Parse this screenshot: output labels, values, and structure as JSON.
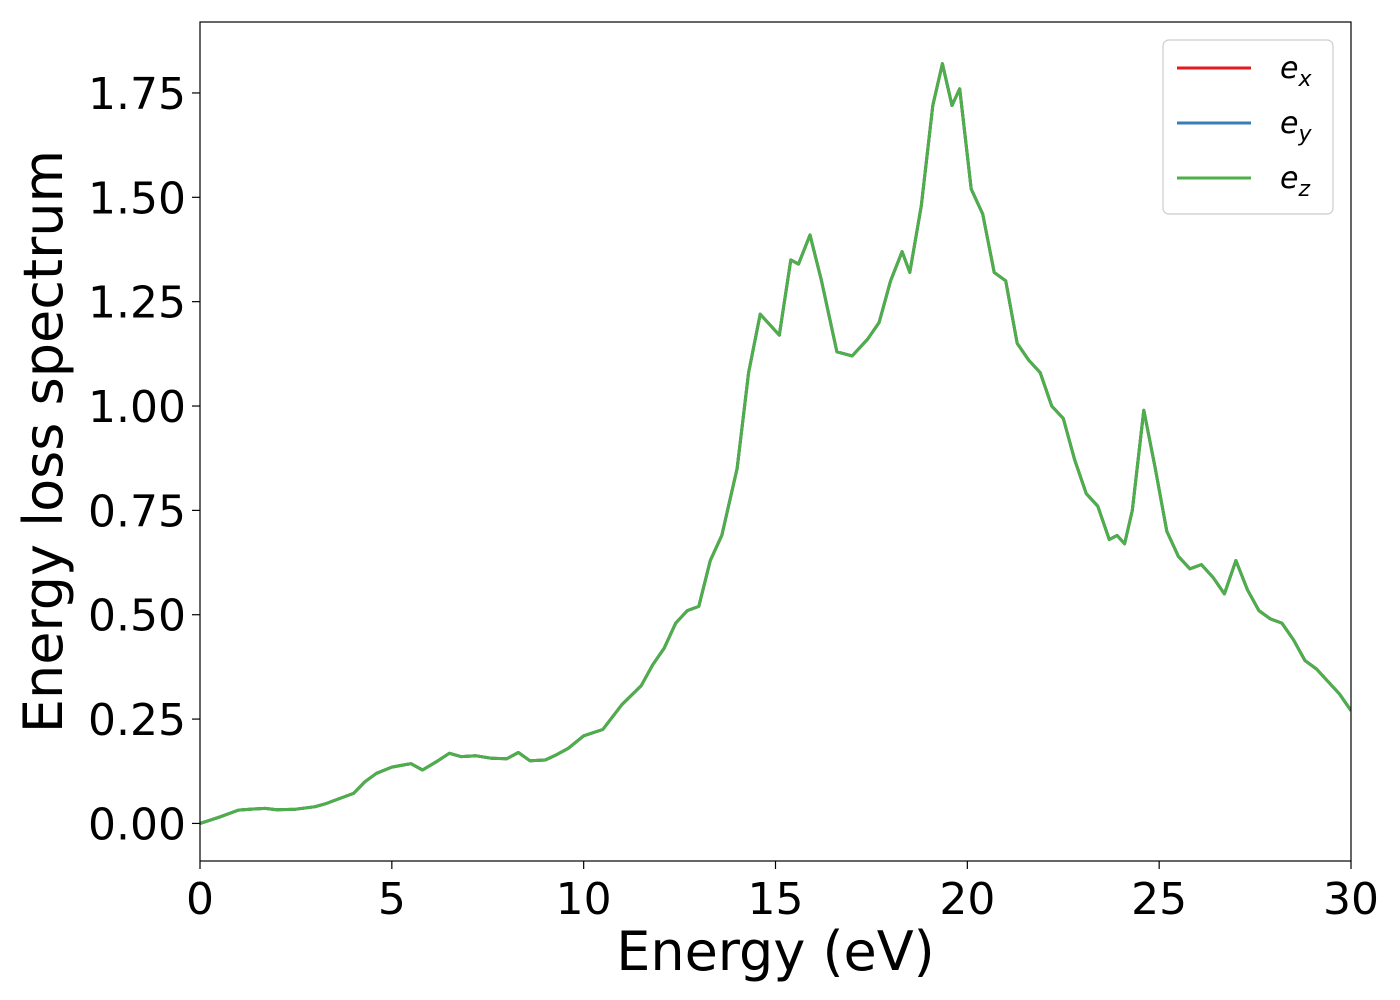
{
  "chart_data": {
    "type": "line",
    "title": "",
    "xlabel": "Energy (eV)",
    "ylabel": "Energy loss spectrum",
    "xlim": [
      0,
      30
    ],
    "ylim": [
      -0.09,
      1.92
    ],
    "xticks": [
      "0",
      "5",
      "10",
      "15",
      "20",
      "25",
      "30"
    ],
    "yticks": [
      "0.00",
      "0.25",
      "0.50",
      "0.75",
      "1.00",
      "1.25",
      "1.50",
      "1.75"
    ],
    "grid": false,
    "legend_position": "top-right",
    "colors": {
      "e_x": "#e41a1c",
      "e_y": "#377eb8",
      "e_z": "#4daf4a"
    },
    "legend": [
      {
        "base": "e",
        "sub": "x",
        "color": "#e41a1c"
      },
      {
        "base": "e",
        "sub": "y",
        "color": "#377eb8"
      },
      {
        "base": "e",
        "sub": "z",
        "color": "#4daf4a"
      }
    ],
    "series": [
      {
        "name": "e_x",
        "color": "#e41a1c"
      },
      {
        "name": "e_y",
        "color": "#377eb8"
      },
      {
        "name": "e_z",
        "color": "#4daf4a"
      }
    ],
    "x": [
      0,
      0.5,
      1.0,
      1.3,
      1.7,
      2.0,
      2.5,
      3.0,
      3.3,
      3.7,
      4.0,
      4.3,
      4.6,
      5.0,
      5.3,
      5.5,
      5.8,
      6.2,
      6.5,
      6.8,
      7.2,
      7.6,
      8.0,
      8.3,
      8.6,
      9.0,
      9.3,
      9.6,
      10.0,
      10.5,
      11.0,
      11.5,
      11.8,
      12.1,
      12.4,
      12.7,
      13.0,
      13.3,
      13.6,
      14.0,
      14.3,
      14.6,
      14.8,
      15.1,
      15.4,
      15.6,
      15.9,
      16.2,
      16.6,
      17.0,
      17.4,
      17.7,
      18.0,
      18.3,
      18.5,
      18.8,
      19.1,
      19.35,
      19.6,
      19.8,
      20.1,
      20.4,
      20.7,
      21.0,
      21.3,
      21.6,
      21.9,
      22.2,
      22.5,
      22.8,
      23.1,
      23.4,
      23.7,
      23.9,
      24.1,
      24.3,
      24.6,
      24.9,
      25.2,
      25.5,
      25.8,
      26.1,
      26.4,
      26.7,
      27.0,
      27.3,
      27.6,
      27.9,
      28.2,
      28.5,
      28.8,
      29.1,
      29.4,
      29.7,
      30.0
    ],
    "y": [
      0.0,
      0.015,
      0.032,
      0.034,
      0.036,
      0.033,
      0.034,
      0.04,
      0.048,
      0.062,
      0.072,
      0.1,
      0.12,
      0.135,
      0.14,
      0.143,
      0.128,
      0.15,
      0.168,
      0.16,
      0.162,
      0.156,
      0.155,
      0.17,
      0.15,
      0.152,
      0.165,
      0.18,
      0.21,
      0.225,
      0.285,
      0.33,
      0.38,
      0.42,
      0.48,
      0.51,
      0.52,
      0.63,
      0.69,
      0.85,
      1.08,
      1.22,
      1.2,
      1.17,
      1.35,
      1.34,
      1.41,
      1.3,
      1.13,
      1.12,
      1.16,
      1.2,
      1.3,
      1.37,
      1.32,
      1.48,
      1.72,
      1.82,
      1.72,
      1.76,
      1.52,
      1.46,
      1.32,
      1.3,
      1.15,
      1.11,
      1.08,
      1.0,
      0.97,
      0.87,
      0.79,
      0.76,
      0.68,
      0.69,
      0.67,
      0.75,
      0.99,
      0.85,
      0.7,
      0.64,
      0.61,
      0.62,
      0.59,
      0.55,
      0.63,
      0.56,
      0.51,
      0.49,
      0.48,
      0.44,
      0.39,
      0.37,
      0.34,
      0.31,
      0.27
    ]
  }
}
